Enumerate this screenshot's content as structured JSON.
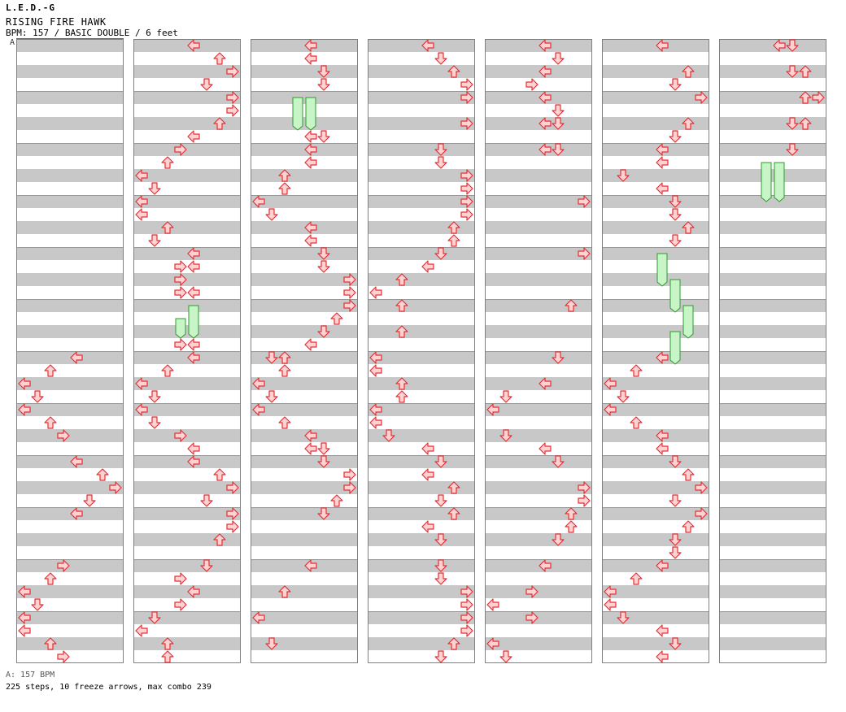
{
  "header": {
    "artist": "L.E.D.-G",
    "title": "RISING FIRE HAWK",
    "meta": "BPM: 157 / BASIC DOUBLE / 6 feet"
  },
  "bpm_marker": "A",
  "footer": {
    "bpm_note": "A: 157 BPM",
    "summary": "225 steps, 10 freeze arrows, max combo 239"
  },
  "colors": {
    "arrow_fill": "#ffd2d2",
    "arrow_stroke": "#e0303a",
    "freeze_fill": "#c8f5c8",
    "freeze_stroke": "#2e9b2e",
    "row_gray": "#c8c8c8",
    "border": "#808080",
    "bpm_line": "#2a6acb"
  }
}
